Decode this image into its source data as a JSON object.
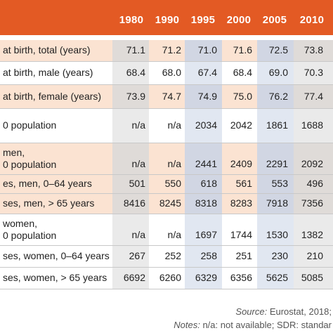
{
  "years": [
    "1980",
    "1990",
    "1995",
    "2000",
    "2005",
    "2010"
  ],
  "rows": [
    {
      "label": "at birth, total (years)",
      "values": [
        "71.1",
        "71.2",
        "71.0",
        "71.6",
        "72.5",
        "73.8"
      ]
    },
    {
      "label": "at birth, male (years)",
      "values": [
        "68.4",
        "68.0",
        "67.4",
        "68.4",
        "69.0",
        "70.3"
      ]
    },
    {
      "label": "at birth, female (years)",
      "values": [
        "73.9",
        "74.7",
        "74.9",
        "75.0",
        "76.2",
        "77.4"
      ]
    },
    {
      "label": "0 population",
      "values": [
        "n/a",
        "n/a",
        "2034",
        "2042",
        "1861",
        "1688"
      ]
    },
    {
      "label": "men,",
      "label2": "0 population",
      "values": [
        "n/a",
        "n/a",
        "2441",
        "2409",
        "2291",
        "2092"
      ]
    },
    {
      "label": "es, men, 0–64 years",
      "values": [
        "501",
        "550",
        "618",
        "561",
        "553",
        "496"
      ]
    },
    {
      "label": "ses, men, > 65 years",
      "values": [
        "8416",
        "8245",
        "8318",
        "8283",
        "7918",
        "7356"
      ]
    },
    {
      "label": "women,",
      "label2": "0 population",
      "values": [
        "n/a",
        "n/a",
        "1697",
        "1744",
        "1530",
        "1382"
      ]
    },
    {
      "label": "ses, women, 0–64 years",
      "values": [
        "267",
        "252",
        "258",
        "251",
        "230",
        "210"
      ]
    },
    {
      "label": "ses, women, > 65 years",
      "values": [
        "6692",
        "6260",
        "6329",
        "6356",
        "5625",
        "5085"
      ]
    }
  ],
  "footer": {
    "source_label": "Source:",
    "source_text": " Eurostat, 2018;",
    "notes_label": "Notes:",
    "notes_text": " n/a: not available; SDR: standar"
  },
  "colors": {
    "header": "#e35a24",
    "peach": "#fbe3d2",
    "blue": "#c9d3e6",
    "gray": "#d9d9d9"
  }
}
